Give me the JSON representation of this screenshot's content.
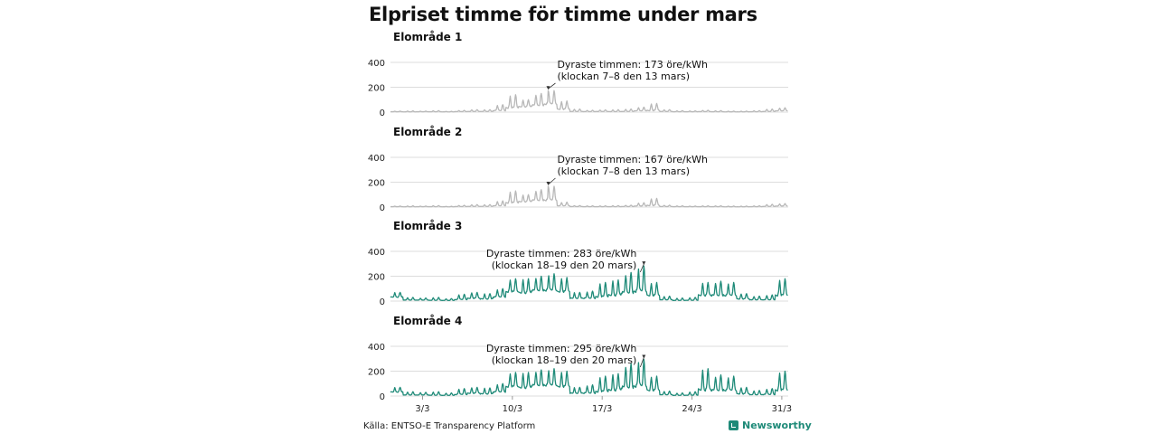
{
  "title": "Elpriset timme för timme under mars",
  "source": "Källa: ENTSO-E Transparency Platform",
  "brand": "Newsworthy",
  "colors": {
    "grey_series": "#b8b8b8",
    "teal_series": "#1e8a78",
    "grid": "#dddddd",
    "brand": "#1e8a78"
  },
  "chart_data": {
    "type": "line",
    "unit": "öre/kWh",
    "x_ticks": [
      "3/3",
      "10/3",
      "17/3",
      "24/3",
      "31/3"
    ],
    "ylim": [
      0,
      400
    ],
    "y_ticks": [
      "400",
      "200",
      "0"
    ],
    "grid": true,
    "panels": [
      {
        "name": "Elområde 1",
        "color": "#b8b8b8",
        "annotation": {
          "lines": [
            "Dyraste timmen: 173 öre/kWh",
            "(klockan 7–8 den 13 mars)"
          ],
          "peak_day": 13,
          "peak_hour": 7,
          "peak_value": 173
        },
        "daily_profile": [
          {
            "day": 1,
            "low": 3,
            "high": 8
          },
          {
            "day": 2,
            "low": 2,
            "high": 10
          },
          {
            "day": 3,
            "low": 3,
            "high": 8
          },
          {
            "day": 4,
            "low": 3,
            "high": 12
          },
          {
            "day": 5,
            "low": 2,
            "high": 6
          },
          {
            "day": 6,
            "low": 4,
            "high": 14
          },
          {
            "day": 7,
            "low": 5,
            "high": 20
          },
          {
            "day": 8,
            "low": 5,
            "high": 20
          },
          {
            "day": 9,
            "low": 10,
            "high": 60
          },
          {
            "day": 10,
            "low": 30,
            "high": 140
          },
          {
            "day": 11,
            "low": 40,
            "high": 100
          },
          {
            "day": 12,
            "low": 50,
            "high": 150
          },
          {
            "day": 13,
            "low": 60,
            "high": 173
          },
          {
            "day": 14,
            "low": 20,
            "high": 90
          },
          {
            "day": 15,
            "low": 5,
            "high": 25
          },
          {
            "day": 16,
            "low": 4,
            "high": 15
          },
          {
            "day": 17,
            "low": 5,
            "high": 18
          },
          {
            "day": 18,
            "low": 4,
            "high": 20
          },
          {
            "day": 19,
            "low": 5,
            "high": 25
          },
          {
            "day": 20,
            "low": 10,
            "high": 40
          },
          {
            "day": 21,
            "low": 10,
            "high": 70
          },
          {
            "day": 22,
            "low": 5,
            "high": 20
          },
          {
            "day": 23,
            "low": 3,
            "high": 12
          },
          {
            "day": 24,
            "low": 3,
            "high": 10
          },
          {
            "day": 25,
            "low": 4,
            "high": 15
          },
          {
            "day": 26,
            "low": 3,
            "high": 12
          },
          {
            "day": 27,
            "low": 2,
            "high": 8
          },
          {
            "day": 28,
            "low": 2,
            "high": 8
          },
          {
            "day": 29,
            "low": 3,
            "high": 12
          },
          {
            "day": 30,
            "low": 5,
            "high": 25
          },
          {
            "day": 31,
            "low": 10,
            "high": 35
          }
        ]
      },
      {
        "name": "Elområde 2",
        "color": "#b8b8b8",
        "annotation": {
          "lines": [
            "Dyraste timmen: 167 öre/kWh",
            "(klockan 7–8 den 13 mars)"
          ],
          "peak_day": 13,
          "peak_hour": 7,
          "peak_value": 167
        },
        "daily_profile": [
          {
            "day": 1,
            "low": 3,
            "high": 8
          },
          {
            "day": 2,
            "low": 2,
            "high": 10
          },
          {
            "day": 3,
            "low": 3,
            "high": 8
          },
          {
            "day": 4,
            "low": 3,
            "high": 12
          },
          {
            "day": 5,
            "low": 2,
            "high": 6
          },
          {
            "day": 6,
            "low": 4,
            "high": 14
          },
          {
            "day": 7,
            "low": 5,
            "high": 20
          },
          {
            "day": 8,
            "low": 5,
            "high": 20
          },
          {
            "day": 9,
            "low": 10,
            "high": 50
          },
          {
            "day": 10,
            "low": 30,
            "high": 130
          },
          {
            "day": 11,
            "low": 40,
            "high": 100
          },
          {
            "day": 12,
            "low": 50,
            "high": 140
          },
          {
            "day": 13,
            "low": 50,
            "high": 167
          },
          {
            "day": 14,
            "low": 10,
            "high": 40
          },
          {
            "day": 15,
            "low": 4,
            "high": 12
          },
          {
            "day": 16,
            "low": 3,
            "high": 10
          },
          {
            "day": 17,
            "low": 3,
            "high": 10
          },
          {
            "day": 18,
            "low": 3,
            "high": 12
          },
          {
            "day": 19,
            "low": 4,
            "high": 15
          },
          {
            "day": 20,
            "low": 8,
            "high": 35
          },
          {
            "day": 21,
            "low": 10,
            "high": 70
          },
          {
            "day": 22,
            "low": 4,
            "high": 15
          },
          {
            "day": 23,
            "low": 3,
            "high": 10
          },
          {
            "day": 24,
            "low": 3,
            "high": 8
          },
          {
            "day": 25,
            "low": 3,
            "high": 10
          },
          {
            "day": 26,
            "low": 3,
            "high": 10
          },
          {
            "day": 27,
            "low": 2,
            "high": 8
          },
          {
            "day": 28,
            "low": 2,
            "high": 8
          },
          {
            "day": 29,
            "low": 3,
            "high": 10
          },
          {
            "day": 30,
            "low": 5,
            "high": 22
          },
          {
            "day": 31,
            "low": 8,
            "high": 28
          }
        ]
      },
      {
        "name": "Elområde 3",
        "color": "#1e8a78",
        "annotation": {
          "lines": [
            "Dyraste timmen: 283 öre/kWh",
            "(klockan 18–19 den 20 mars)"
          ],
          "peak_day": 20,
          "peak_hour": 18,
          "peak_value": 283
        },
        "daily_profile": [
          {
            "day": 1,
            "low": 30,
            "high": 70
          },
          {
            "day": 2,
            "low": 8,
            "high": 30
          },
          {
            "day": 3,
            "low": 8,
            "high": 25
          },
          {
            "day": 4,
            "low": 6,
            "high": 30
          },
          {
            "day": 5,
            "low": 5,
            "high": 20
          },
          {
            "day": 6,
            "low": 10,
            "high": 55
          },
          {
            "day": 7,
            "low": 20,
            "high": 70
          },
          {
            "day": 8,
            "low": 15,
            "high": 60
          },
          {
            "day": 9,
            "low": 30,
            "high": 100
          },
          {
            "day": 10,
            "low": 70,
            "high": 180
          },
          {
            "day": 11,
            "low": 60,
            "high": 180
          },
          {
            "day": 12,
            "low": 80,
            "high": 200
          },
          {
            "day": 13,
            "low": 80,
            "high": 220
          },
          {
            "day": 14,
            "low": 70,
            "high": 190
          },
          {
            "day": 15,
            "low": 20,
            "high": 70
          },
          {
            "day": 16,
            "low": 20,
            "high": 80
          },
          {
            "day": 17,
            "low": 30,
            "high": 150
          },
          {
            "day": 18,
            "low": 40,
            "high": 170
          },
          {
            "day": 19,
            "low": 60,
            "high": 230
          },
          {
            "day": 20,
            "low": 70,
            "high": 283
          },
          {
            "day": 21,
            "low": 40,
            "high": 150
          },
          {
            "day": 22,
            "low": 10,
            "high": 40
          },
          {
            "day": 23,
            "low": 5,
            "high": 25
          },
          {
            "day": 24,
            "low": 6,
            "high": 30
          },
          {
            "day": 25,
            "low": 40,
            "high": 150
          },
          {
            "day": 26,
            "low": 40,
            "high": 160
          },
          {
            "day": 27,
            "low": 40,
            "high": 150
          },
          {
            "day": 28,
            "low": 15,
            "high": 60
          },
          {
            "day": 29,
            "low": 10,
            "high": 40
          },
          {
            "day": 30,
            "low": 10,
            "high": 50
          },
          {
            "day": 31,
            "low": 40,
            "high": 180
          }
        ]
      },
      {
        "name": "Elområde 4",
        "color": "#1e8a78",
        "annotation": {
          "lines": [
            "Dyraste timmen: 295 öre/kWh",
            "(klockan 18–19 den 20 mars)"
          ],
          "peak_day": 20,
          "peak_hour": 18,
          "peak_value": 295
        },
        "daily_profile": [
          {
            "day": 1,
            "low": 30,
            "high": 70
          },
          {
            "day": 2,
            "low": 8,
            "high": 35
          },
          {
            "day": 3,
            "low": 8,
            "high": 30
          },
          {
            "day": 4,
            "low": 6,
            "high": 35
          },
          {
            "day": 5,
            "low": 5,
            "high": 25
          },
          {
            "day": 6,
            "low": 10,
            "high": 60
          },
          {
            "day": 7,
            "low": 20,
            "high": 70
          },
          {
            "day": 8,
            "low": 15,
            "high": 65
          },
          {
            "day": 9,
            "low": 30,
            "high": 100
          },
          {
            "day": 10,
            "low": 70,
            "high": 190
          },
          {
            "day": 11,
            "low": 60,
            "high": 190
          },
          {
            "day": 12,
            "low": 80,
            "high": 210
          },
          {
            "day": 13,
            "low": 80,
            "high": 220
          },
          {
            "day": 14,
            "low": 70,
            "high": 200
          },
          {
            "day": 15,
            "low": 20,
            "high": 70
          },
          {
            "day": 16,
            "low": 20,
            "high": 90
          },
          {
            "day": 17,
            "low": 30,
            "high": 160
          },
          {
            "day": 18,
            "low": 40,
            "high": 180
          },
          {
            "day": 19,
            "low": 60,
            "high": 260
          },
          {
            "day": 20,
            "low": 70,
            "high": 295
          },
          {
            "day": 21,
            "low": 40,
            "high": 160
          },
          {
            "day": 22,
            "low": 10,
            "high": 40
          },
          {
            "day": 23,
            "low": 5,
            "high": 25
          },
          {
            "day": 24,
            "low": 6,
            "high": 35
          },
          {
            "day": 25,
            "low": 40,
            "high": 220
          },
          {
            "day": 26,
            "low": 40,
            "high": 170
          },
          {
            "day": 27,
            "low": 40,
            "high": 160
          },
          {
            "day": 28,
            "low": 15,
            "high": 70
          },
          {
            "day": 29,
            "low": 10,
            "high": 45
          },
          {
            "day": 30,
            "low": 10,
            "high": 60
          },
          {
            "day": 31,
            "low": 40,
            "high": 200
          }
        ]
      }
    ]
  }
}
